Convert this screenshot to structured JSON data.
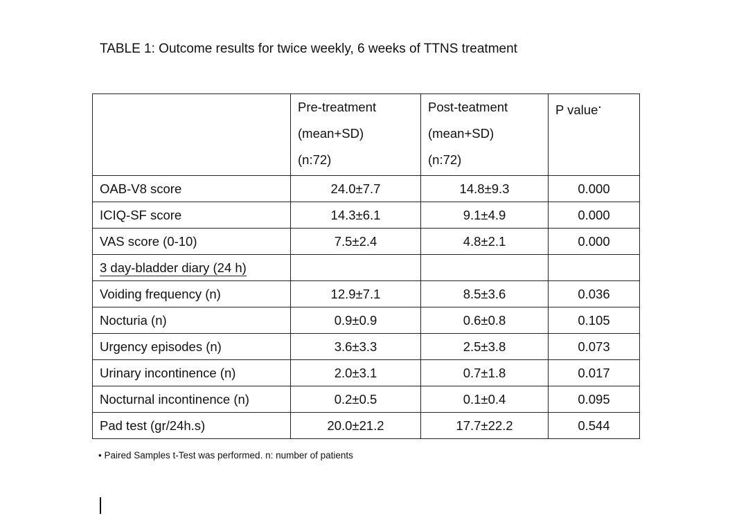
{
  "title": "TABLE 1: Outcome results for twice weekly, 6 weeks of TTNS treatment",
  "header": {
    "pre": [
      "Pre-treatment",
      "(mean+SD)",
      "(n:72)"
    ],
    "post": [
      "Post-teatment",
      "(mean+SD)",
      "(n:72)"
    ],
    "pvalue": "P value",
    "pvalue_mark": "•"
  },
  "rows": [
    {
      "label": "OAB-V8 score",
      "pre": "24.0±7.7",
      "post": "14.8±9.3",
      "p": "0.000"
    },
    {
      "label": "ICIQ-SF score",
      "pre": "14.3±6.1",
      "post": "9.1±4.9",
      "p": "0.000"
    },
    {
      "label": "VAS score (0-10)",
      "pre": "7.5±2.4",
      "post": "4.8±2.1",
      "p": "0.000"
    },
    {
      "label": "3 day-bladder diary (24 h)",
      "pre": "",
      "post": "",
      "p": ""
    },
    {
      "label": "Voiding frequency (n)",
      "pre": "12.9±7.1",
      "post": "8.5±3.6",
      "p": "0.036"
    },
    {
      "label": "Nocturia (n)",
      "pre": "0.9±0.9",
      "post": "0.6±0.8",
      "p": "0.105"
    },
    {
      "label": "Urgency episodes (n)",
      "pre": "3.6±3.3",
      "post": "2.5±3.8",
      "p": "0.073"
    },
    {
      "label": "Urinary incontinence (n)",
      "pre": "2.0±3.1",
      "post": "0.7±1.8",
      "p": "0.017"
    },
    {
      "label": "Nocturnal incontinence (n)",
      "pre": "0.2±0.5",
      "post": "0.1±0.4",
      "p": "0.095"
    },
    {
      "label": "Pad test (gr/24h.s)",
      "pre": "20.0±21.2",
      "post": "17.7±22.2",
      "p": "0.544"
    }
  ],
  "footnote": "• Paired Samples t-Test was performed. n: number of patients"
}
